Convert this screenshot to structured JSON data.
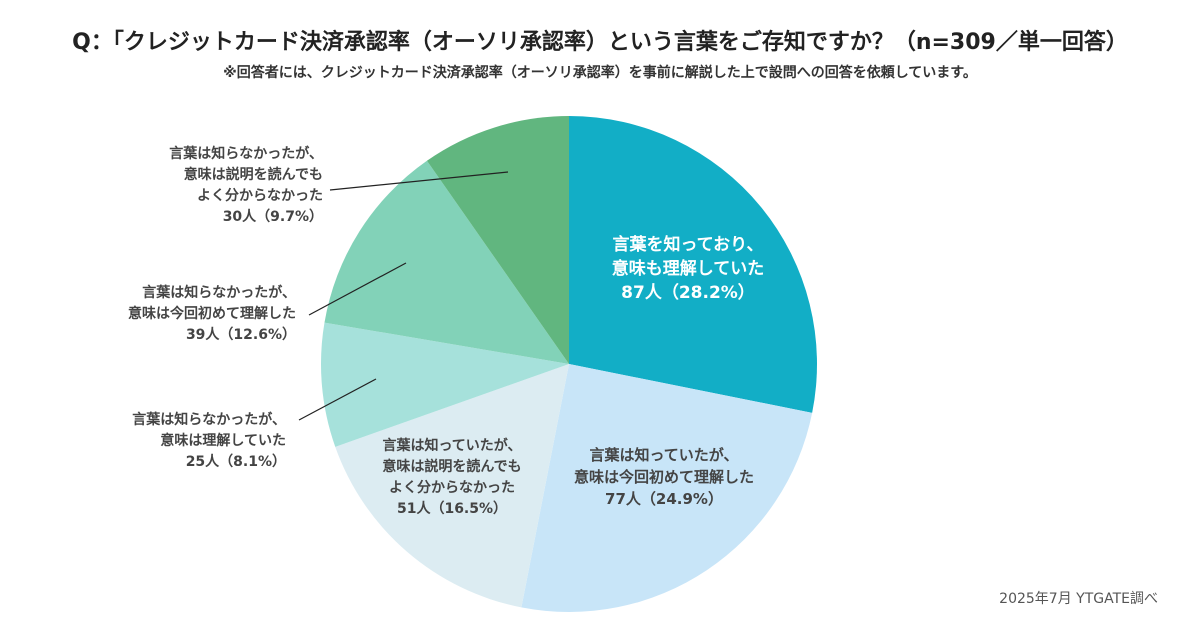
{
  "title": "Q：「クレジットカード決済承認率（オーソリ承認率）という言葉をご存知ですか？（n=309／単一回答）",
  "subtitle": "※回答者には、クレジットカード決済承認率（オーソリ承認率）を事前に解説した上で設問への回答を依頼しています。",
  "source": "2025年7月 YTGATE調べ",
  "chart_data": {
    "type": "pie",
    "total": 309,
    "slices": [
      {
        "lines": [
          "言葉を知っており、",
          "意味も理解していた",
          "87人（28.2%）"
        ],
        "count": 87,
        "percent": 28.2,
        "color": "#12AEC6",
        "text_color": "#ffffff"
      },
      {
        "lines": [
          "言葉は知っていたが、",
          "意味は今回初めて理解した",
          "77人（24.9%）"
        ],
        "count": 77,
        "percent": 24.9,
        "color": "#C8E5F8",
        "text_color": "#444444"
      },
      {
        "lines": [
          "言葉は知っていたが、",
          "意味は説明を読んでも",
          "よく分からなかった",
          "51人（16.5%）"
        ],
        "count": 51,
        "percent": 16.5,
        "color": "#DCECF2",
        "text_color": "#444444"
      },
      {
        "lines": [
          "言葉は知らなかったが、",
          "意味は理解していた",
          "25人（8.1%）"
        ],
        "count": 25,
        "percent": 8.1,
        "color": "#A6E1DB",
        "text_color": "#444444"
      },
      {
        "lines": [
          "言葉は知らなかったが、",
          "意味は今回初めて理解した",
          "39人（12.6%）"
        ],
        "count": 39,
        "percent": 12.6,
        "color": "#82D2B8",
        "text_color": "#444444"
      },
      {
        "lines": [
          "言葉は知らなかったが、",
          "意味は説明を読んでも",
          "よく分からなかった",
          "30人（9.7%）"
        ],
        "count": 30,
        "percent": 9.7,
        "color": "#61B67F",
        "text_color": "#444444"
      }
    ]
  }
}
